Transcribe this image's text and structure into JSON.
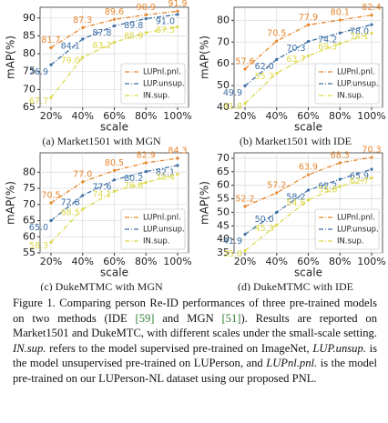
{
  "chart_data": [
    {
      "type": "line",
      "title": "(a) Market1501 with MGN",
      "xlabel": "scale",
      "ylabel": "mAP(%)",
      "categories": [
        "20%",
        "40%",
        "60%",
        "80%",
        "100%"
      ],
      "ylim": [
        65,
        93
      ],
      "yticks": [
        65,
        70,
        75,
        80,
        85,
        90
      ],
      "grid": true,
      "legend": "lower right",
      "series": [
        {
          "name": "LUPnl.pnl.",
          "color": "#e8862c",
          "values": [
            81.7,
            87.3,
            89.6,
            90.9,
            91.9
          ],
          "value_labels": [
            "81.7",
            "87.3",
            "89.6",
            "90.9",
            "91.9"
          ]
        },
        {
          "name": "LUP.unsup.",
          "color": "#3d6fa5",
          "values": [
            76.9,
            84.1,
            87.8,
            89.8,
            91.0
          ],
          "value_labels": [
            "76.9",
            "84.1",
            "87.8",
            "89.8",
            "91.0"
          ]
        },
        {
          "name": "IN.sup.",
          "color": "#dcd84c",
          "values": [
            67.7,
            79.0,
            83.2,
            85.9,
            87.5
          ],
          "value_labels": [
            "67.7",
            "79.0",
            "83.2",
            "85.9",
            "87.5"
          ]
        }
      ]
    },
    {
      "type": "line",
      "title": "(b) Market1501 with IDE",
      "xlabel": "scale",
      "ylabel": "mAP(%)",
      "categories": [
        "20%",
        "40%",
        "60%",
        "80%",
        "100%"
      ],
      "ylim": [
        40,
        86
      ],
      "yticks": [
        40,
        50,
        60,
        70,
        80
      ],
      "grid": true,
      "legend": "lower right",
      "series": [
        {
          "name": "LUPnl.pnl.",
          "color": "#e8862c",
          "values": [
            57.6,
            70.5,
            77.9,
            80.1,
            82.4
          ],
          "value_labels": [
            "57.6",
            "70.5",
            "77.9",
            "80.1",
            "82.4"
          ]
        },
        {
          "name": "LUP.unsup.",
          "color": "#3d6fa5",
          "values": [
            49.9,
            62.0,
            70.3,
            74.2,
            78.0
          ],
          "value_labels": [
            "49.9",
            "62.0",
            "70.3",
            "74.2",
            "78.0"
          ]
        },
        {
          "name": "IN.sup.",
          "color": "#dcd84c",
          "values": [
            41.8,
            55.7,
            63.7,
            69.3,
            74.1
          ],
          "value_labels": [
            "41.8",
            "55.7",
            "63.7",
            "69.3",
            "74.1"
          ]
        }
      ]
    },
    {
      "type": "line",
      "title": "(c) DukeMTMC with MGN",
      "xlabel": "scale",
      "ylabel": "mAP(%)",
      "categories": [
        "20%",
        "40%",
        "60%",
        "80%",
        "100%"
      ],
      "ylim": [
        55,
        86
      ],
      "yticks": [
        55,
        60,
        65,
        70,
        75,
        80
      ],
      "grid": true,
      "legend": "lower right",
      "series": [
        {
          "name": "LUPnl.pnl.",
          "color": "#e8862c",
          "values": [
            70.5,
            77.0,
            80.5,
            82.9,
            84.3
          ],
          "value_labels": [
            "70.5",
            "77.0",
            "80.5",
            "82.9",
            "84.3"
          ]
        },
        {
          "name": "LUP.unsup.",
          "color": "#3d6fa5",
          "values": [
            65.0,
            72.8,
            77.6,
            80.2,
            82.1
          ],
          "value_labels": [
            "65.0",
            "72.8",
            "77.6",
            "80.2",
            "82.1"
          ]
        },
        {
          "name": "IN.sup.",
          "color": "#dcd84c",
          "values": [
            58.3,
            68.5,
            74.1,
            76.8,
            79.4
          ],
          "value_labels": [
            "58.3",
            "68.5",
            "74.1",
            "76.8",
            "79.4"
          ]
        }
      ]
    },
    {
      "type": "line",
      "title": "(d) DukeMTMC with IDE",
      "xlabel": "scale",
      "ylabel": "mAP(%)",
      "categories": [
        "20%",
        "40%",
        "60%",
        "80%",
        "100%"
      ],
      "ylim": [
        35,
        72
      ],
      "yticks": [
        35,
        40,
        45,
        50,
        55,
        60,
        65,
        70
      ],
      "grid": true,
      "legend": "lower right",
      "series": [
        {
          "name": "LUPnl.pnl.",
          "color": "#e8862c",
          "values": [
            52.2,
            57.2,
            63.9,
            68.3,
            70.3
          ],
          "value_labels": [
            "52.2",
            "57.2",
            "63.9",
            "68.3",
            "70.3"
          ]
        },
        {
          "name": "LUP.unsup.",
          "color": "#3d6fa5",
          "values": [
            41.9,
            50.0,
            58.2,
            62.2,
            65.9
          ],
          "value_labels": [
            "41.9",
            "50.0",
            "58.2",
            "62.2",
            "65.9"
          ]
        },
        {
          "name": "IN.sup.",
          "color": "#dcd84c",
          "values": [
            35.8,
            45.3,
            54.6,
            59.6,
            62.7
          ],
          "value_labels": [
            "35.8",
            "45.3",
            "54.6",
            "59.6",
            "62.7"
          ]
        }
      ]
    }
  ],
  "caption": [
    "Figure 1.",
    " Comparing person Re-ID performances of three pre-trained models on two methods (IDE ",
    "[59]",
    " and MGN ",
    "[51]",
    "). Results are reported on Market1501 and DukeMTC, with different scales under the small-scale setting. ",
    "IN.sup.",
    " refers to the model supervised pre-trained on ImageNet, ",
    "LUP.unsup.",
    " is the model unsupervised pre-trained on LUPerson, and ",
    "LUPnl.pnl.",
    " is the model pre-trained on our LUPerson-NL dataset using our proposed PNL."
  ]
}
